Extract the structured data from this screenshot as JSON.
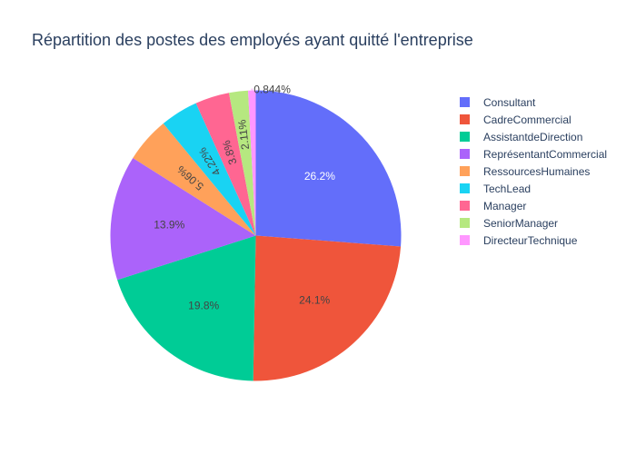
{
  "chart_data": {
    "type": "pie",
    "title": "Répartition des postes des employés ayant quitté l'entreprise",
    "slices": [
      {
        "label": "Consultant",
        "value": 26.2,
        "text": "26.2%",
        "color": "#636efa",
        "text_color": "#ffffff"
      },
      {
        "label": "CadreCommercial",
        "value": 24.1,
        "text": "24.1%",
        "color": "#EF553B",
        "text_color": "#444444"
      },
      {
        "label": "AssistantdeDirection",
        "value": 19.8,
        "text": "19.8%",
        "color": "#00cc96",
        "text_color": "#444444"
      },
      {
        "label": "ReprésentantCommercial",
        "value": 13.9,
        "text": "13.9%",
        "color": "#ab63fa",
        "text_color": "#444444"
      },
      {
        "label": "RessourcesHumaines",
        "value": 5.06,
        "text": "5.06%",
        "color": "#FFA15A",
        "text_color": "#444444"
      },
      {
        "label": "TechLead",
        "value": 4.22,
        "text": "4.22%",
        "color": "#19d3f3",
        "text_color": "#444444"
      },
      {
        "label": "Manager",
        "value": 3.8,
        "text": "3.8%",
        "color": "#FF6692",
        "text_color": "#444444"
      },
      {
        "label": "SeniorManager",
        "value": 2.11,
        "text": "2.11%",
        "color": "#B6E880",
        "text_color": "#444444"
      },
      {
        "label": "DirecteurTechnique",
        "value": 0.844,
        "text": "0.844%",
        "color": "#FF97FF",
        "text_color": "#444444",
        "outside": true
      }
    ],
    "legend_position": "right",
    "sort": "descending",
    "direction": "clockwise",
    "start": "top"
  }
}
